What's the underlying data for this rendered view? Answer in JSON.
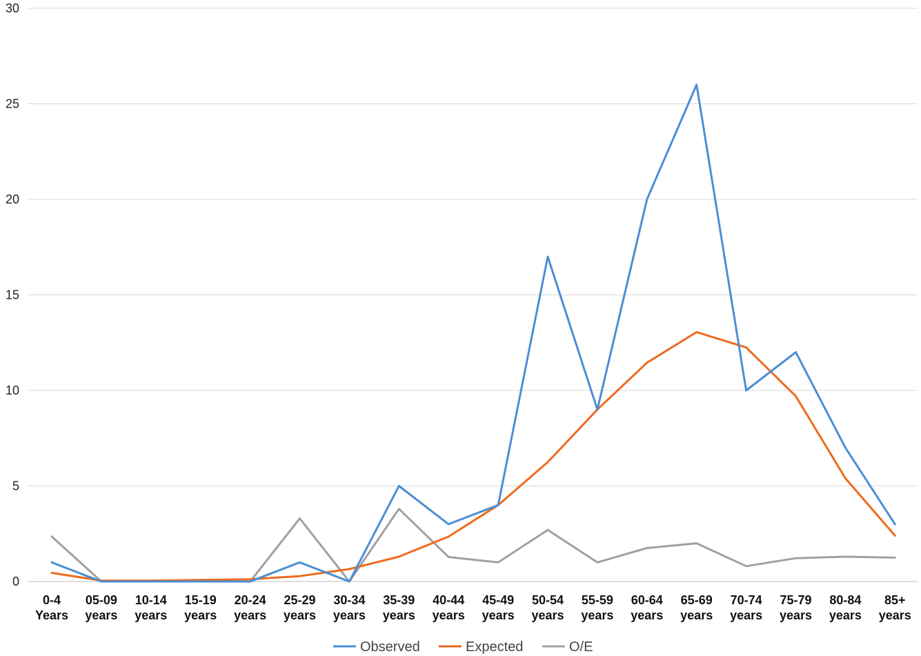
{
  "chart_data": {
    "type": "line",
    "categories": [
      [
        "0-4",
        "Years"
      ],
      [
        "05-09",
        "years"
      ],
      [
        "10-14",
        "years"
      ],
      [
        "15-19",
        "years"
      ],
      [
        "20-24",
        "years"
      ],
      [
        "25-29",
        "years"
      ],
      [
        "30-34",
        "years"
      ],
      [
        "35-39",
        "years"
      ],
      [
        "40-44",
        "years"
      ],
      [
        "45-49",
        "years"
      ],
      [
        "50-54",
        "years"
      ],
      [
        "55-59",
        "years"
      ],
      [
        "60-64",
        "years"
      ],
      [
        "65-69",
        "years"
      ],
      [
        "70-74",
        "years"
      ],
      [
        "75-79",
        "years"
      ],
      [
        "80-84",
        "years"
      ],
      [
        "85+",
        "years"
      ]
    ],
    "series": [
      {
        "name": "Observed",
        "color": "#4a8fd4",
        "values": [
          1,
          0,
          0,
          0,
          0,
          1,
          0,
          5,
          3,
          4,
          17,
          9,
          20,
          26,
          10,
          12,
          7,
          3
        ]
      },
      {
        "name": "Expected",
        "color": "#ed6b1e",
        "values": [
          0.45,
          0.05,
          0.05,
          0.08,
          0.12,
          0.28,
          0.65,
          1.3,
          2.35,
          4.0,
          6.25,
          9.0,
          11.45,
          13.05,
          12.25,
          9.7,
          5.4,
          2.4
        ]
      },
      {
        "name": "O/E",
        "color": "#a0a0a0",
        "values": [
          2.35,
          0,
          0,
          0,
          0,
          3.3,
          0,
          3.8,
          1.28,
          1.0,
          2.7,
          1.0,
          1.75,
          2.0,
          0.8,
          1.22,
          1.3,
          1.25
        ]
      }
    ],
    "yticks": [
      0,
      5,
      10,
      15,
      20,
      25,
      30
    ],
    "ylim": [
      0,
      30
    ],
    "grid": true,
    "legend_position": "bottom"
  }
}
